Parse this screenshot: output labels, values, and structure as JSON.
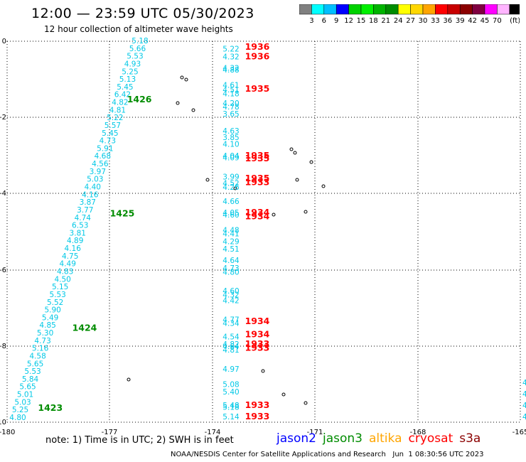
{
  "header": {
    "title": "12:00 — 23:59 UTC 05/30/2023",
    "subtitle": "12 hour collection of altimeter wave heights"
  },
  "colorbar": {
    "unit": "(ft)",
    "bins": [
      {
        "label": "",
        "color": "#808080"
      },
      {
        "label": "3",
        "color": "#00ffff"
      },
      {
        "label": "6",
        "color": "#00bfff"
      },
      {
        "label": "9",
        "color": "#0000ff"
      },
      {
        "label": "12",
        "color": "#00d200"
      },
      {
        "label": "15",
        "color": "#00f000"
      },
      {
        "label": "18",
        "color": "#00b400"
      },
      {
        "label": "21",
        "color": "#008c00"
      },
      {
        "label": "24",
        "color": "#ffff00"
      },
      {
        "label": "27",
        "color": "#ffd700"
      },
      {
        "label": "30",
        "color": "#ffa500"
      },
      {
        "label": "33",
        "color": "#ff0000"
      },
      {
        "label": "36",
        "color": "#c80000"
      },
      {
        "label": "39",
        "color": "#8b0000"
      },
      {
        "label": "42",
        "color": "#800040"
      },
      {
        "label": "45",
        "color": "#ff00ff"
      },
      {
        "label": "70",
        "color": "#ffb4ff"
      },
      {
        "label": "",
        "color": "#000000"
      }
    ]
  },
  "axes": {
    "x_ticks": [
      "-180",
      "-177",
      "-174",
      "-171",
      "-168",
      "-165"
    ],
    "y_ticks": [
      "0",
      "-2",
      "-4",
      "-6",
      "-8",
      "-10"
    ]
  },
  "notes": {
    "text": "note: 1) Time is in UTC; 2) SWH is in feet",
    "credit": "NOAA/NESDIS Center for Satellite Applications and Research   Jun  1 08:30:56 UTC 2023"
  },
  "satellites": [
    {
      "name": "jason2",
      "color": "#0000ff"
    },
    {
      "name": "jason3",
      "color": "#008c00"
    },
    {
      "name": "altika",
      "color": "#ffa500"
    },
    {
      "name": "cryosat",
      "color": "#ff0000"
    },
    {
      "name": "s3a",
      "color": "#8b0000"
    }
  ],
  "tracks": {
    "west_swh": [
      "5.18",
      "5.66",
      "5.53",
      "4.93",
      "5.25",
      "5.13",
      "5.45",
      "6.42",
      "4.82",
      "4.81",
      "5.22",
      "5.57",
      "5.45",
      "4.73",
      "5.91",
      "4.68",
      "4.56",
      "3.97",
      "5.03",
      "4.40",
      "4.16",
      "3.87",
      "3.77",
      "4.74",
      "6.53",
      "3.81",
      "4.89",
      "4.16",
      "4.75",
      "4.49",
      "4.83",
      "4.50",
      "5.15",
      "5.53",
      "5.52",
      "5.90",
      "5.49",
      "4.85",
      "5.30",
      "4.73",
      "5.16",
      "4.58",
      "5.65",
      "5.53",
      "5.84",
      "5.65",
      "5.01",
      "5.03",
      "5.25",
      "4.80"
    ],
    "west_times": [
      {
        "label": "1426",
        "lon": -176.5,
        "lat": -1.6
      },
      {
        "label": "1425",
        "lon": -177.0,
        "lat": -4.6
      },
      {
        "label": "1424",
        "lon": -178.1,
        "lat": -7.6
      },
      {
        "label": "1423",
        "lon": -179.1,
        "lat": -9.7
      }
    ],
    "middle_swh": [
      {
        "v": "5.22",
        "lat": -0.2
      },
      {
        "v": "4.32",
        "lat": -0.4
      },
      {
        "v": "4.32",
        "lat": -0.7
      },
      {
        "v": "4.88",
        "lat": -0.75
      },
      {
        "v": "4.61",
        "lat": -1.15
      },
      {
        "v": "4.51",
        "lat": -1.27
      },
      {
        "v": "4.18",
        "lat": -1.37
      },
      {
        "v": "4.20",
        "lat": -1.62
      },
      {
        "v": "4.78",
        "lat": -1.72
      },
      {
        "v": "3.65",
        "lat": -1.9
      },
      {
        "v": "4.63",
        "lat": -2.35
      },
      {
        "v": "3.85",
        "lat": -2.52
      },
      {
        "v": "4.10",
        "lat": -2.7
      },
      {
        "v": "4.04",
        "lat": -3.0
      },
      {
        "v": "4.09",
        "lat": -3.05
      },
      {
        "v": "3.99",
        "lat": -3.55
      },
      {
        "v": "4.52",
        "lat": -3.72
      },
      {
        "v": "4.26",
        "lat": -3.82
      },
      {
        "v": "4.66",
        "lat": -4.2
      },
      {
        "v": "4.05",
        "lat": -4.5
      },
      {
        "v": "4.60",
        "lat": -4.55
      },
      {
        "v": "4.48",
        "lat": -4.95
      },
      {
        "v": "4.41",
        "lat": -5.05
      },
      {
        "v": "4.29",
        "lat": -5.25
      },
      {
        "v": "4.51",
        "lat": -5.45
      },
      {
        "v": "4.64",
        "lat": -5.75
      },
      {
        "v": "4.73",
        "lat": -5.95
      },
      {
        "v": "4.80",
        "lat": -6.05
      },
      {
        "v": "4.60",
        "lat": -6.55
      },
      {
        "v": "4.32",
        "lat": -6.65
      },
      {
        "v": "4.42",
        "lat": -6.8
      },
      {
        "v": "4.77",
        "lat": -7.3
      },
      {
        "v": "4.34",
        "lat": -7.4
      },
      {
        "v": "4.54",
        "lat": -7.75
      },
      {
        "v": "4.82",
        "lat": -7.95
      },
      {
        "v": "4.64",
        "lat": -8.0
      },
      {
        "v": "4.81",
        "lat": -8.1
      },
      {
        "v": "4.97",
        "lat": -8.6
      },
      {
        "v": "5.08",
        "lat": -9.0
      },
      {
        "v": "5.40",
        "lat": -9.2
      },
      {
        "v": "5.48",
        "lat": -9.55
      },
      {
        "v": "5.18",
        "lat": -9.6
      },
      {
        "v": "5.14",
        "lat": -9.85
      }
    ],
    "middle_times": [
      {
        "label": "1936",
        "lat": -0.15
      },
      {
        "label": "1936",
        "lat": -0.4
      },
      {
        "label": "1935",
        "lat": -1.25
      },
      {
        "label": "1935",
        "lat": -3.0
      },
      {
        "label": "1935",
        "lat": -3.08
      },
      {
        "label": "1935",
        "lat": -3.6
      },
      {
        "label": "1933",
        "lat": -3.7
      },
      {
        "label": "1934",
        "lat": -4.5
      },
      {
        "label": "1934",
        "lat": -4.6
      },
      {
        "label": "1934",
        "lat": -7.35
      },
      {
        "label": "1934",
        "lat": -7.7
      },
      {
        "label": "1933",
        "lat": -7.95
      },
      {
        "label": "1933",
        "lat": -8.05
      },
      {
        "label": "1933",
        "lat": -9.55
      },
      {
        "label": "1933",
        "lat": -9.85
      }
    ],
    "east_fragments": [
      "4",
      "4",
      "4",
      "4"
    ]
  }
}
